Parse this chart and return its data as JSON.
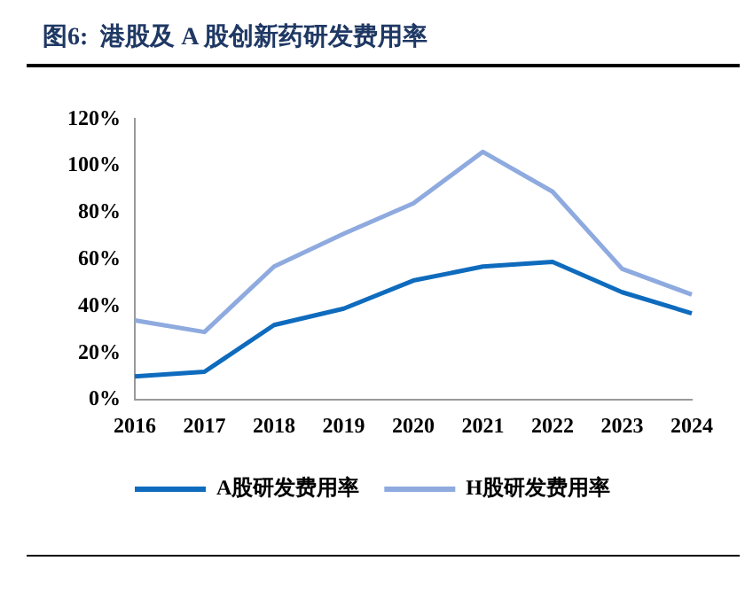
{
  "chart_data": {
    "type": "line",
    "title": "图6:  港股及 A 股创新药研发费用率",
    "categories": [
      "2016",
      "2017",
      "2018",
      "2019",
      "2020",
      "2021",
      "2022",
      "2023",
      "2024"
    ],
    "series": [
      {
        "name": "A股研发费用率",
        "color": "#0e6bbd",
        "values": [
          10,
          12,
          32,
          39,
          51,
          57,
          59,
          46,
          37
        ]
      },
      {
        "name": "H股研发费用率",
        "color": "#8eaadf",
        "values": [
          34,
          29,
          57,
          71,
          84,
          106,
          89,
          56,
          45
        ]
      }
    ],
    "ylim": [
      0,
      120
    ],
    "yticks": [
      {
        "value": 0,
        "label": "0%"
      },
      {
        "value": 20,
        "label": "20%"
      },
      {
        "value": 40,
        "label": "40%"
      },
      {
        "value": 60,
        "label": "60%"
      },
      {
        "value": 80,
        "label": "80%"
      },
      {
        "value": 100,
        "label": "100%"
      },
      {
        "value": 120,
        "label": "120%"
      }
    ],
    "grid": false,
    "legend": "bottom",
    "marker": "none",
    "line_style": "solid"
  }
}
